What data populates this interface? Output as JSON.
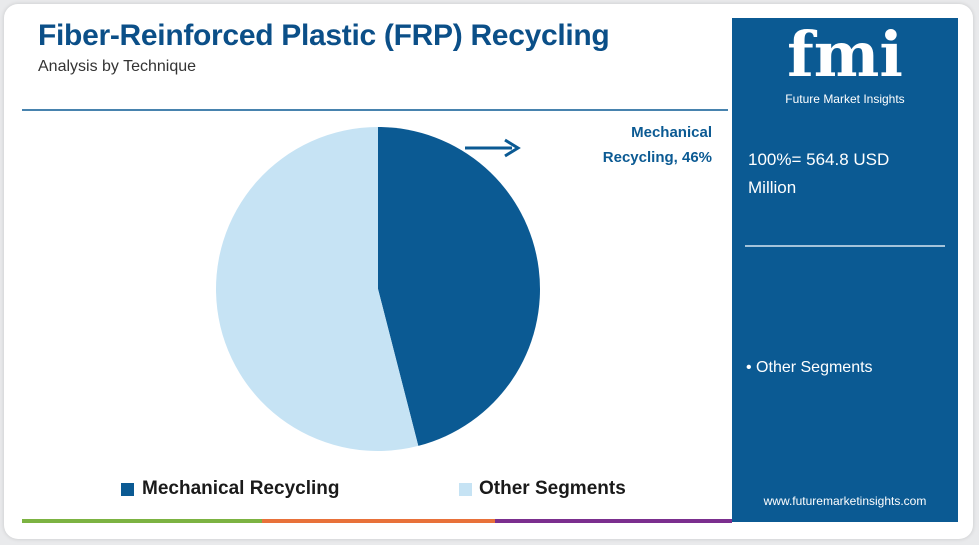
{
  "chart_data": {
    "type": "pie",
    "title": "Fiber-Reinforced Plastic (FRP) Recycling",
    "subtitle": "Analysis by Technique",
    "categories": [
      "Mechanical Recycling",
      "Other Segments"
    ],
    "values": [
      46,
      54
    ],
    "value_labels": [
      "Mechanical Recycling, 46%",
      null
    ],
    "colors": [
      "#0b5a93",
      "#c6e3f4"
    ],
    "total_note": "100%= 564.8 USD Million",
    "side_list": [
      "Other Segments"
    ]
  },
  "brand": {
    "logo": "fmi",
    "name": "Future Market Insights",
    "url": "www.futuremarketinsights.com"
  }
}
